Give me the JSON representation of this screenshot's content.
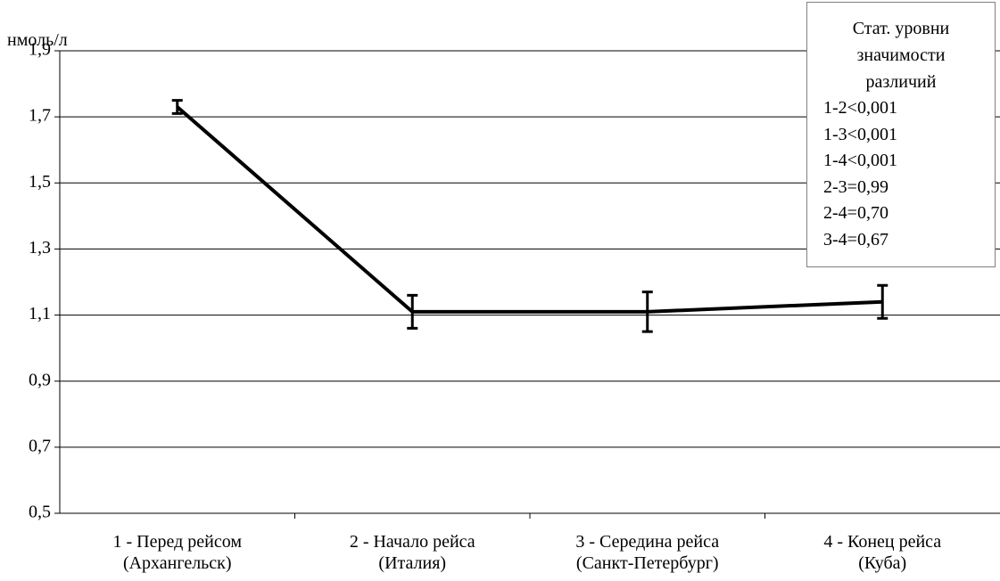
{
  "chart_data": {
    "type": "line",
    "y_label": "нмоль/л",
    "categories": [
      "1 - Перед рейсом\n(Архангельск)",
      "2 - Начало рейса\n(Италия)",
      "3 - Середина рейса\n(Санкт-Петербург)",
      "4 - Конец рейса\n(Куба)"
    ],
    "values": [
      1.73,
      1.11,
      1.11,
      1.14
    ],
    "errors": [
      0.02,
      0.05,
      0.06,
      0.05
    ],
    "color": "#000000",
    "ylim": [
      0.5,
      1.9
    ],
    "yticks": [
      {
        "value": 0.5,
        "label": "0,5"
      },
      {
        "value": 0.7,
        "label": "0,7"
      },
      {
        "value": 0.9,
        "label": "0,9"
      },
      {
        "value": 1.1,
        "label": "1,1"
      },
      {
        "value": 1.3,
        "label": "1,3"
      },
      {
        "value": 1.5,
        "label": "1,5"
      },
      {
        "value": 1.7,
        "label": "1,7"
      },
      {
        "value": 1.9,
        "label": "1,9"
      }
    ],
    "grid": true,
    "annotation_title": "Стат. уровни\nзначимости\nразличий",
    "annotations": [
      "1-2<0,001",
      "1-3<0,001",
      "1-4<0,001",
      "2-3=0,99",
      "2-4=0,70",
      "3-4=0,67"
    ]
  }
}
